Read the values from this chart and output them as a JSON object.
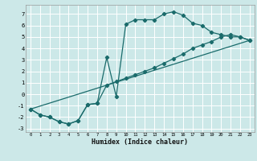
{
  "xlabel": "Humidex (Indice chaleur)",
  "bg_color": "#cce8e8",
  "grid_color": "#ffffff",
  "line_color": "#1a6b6b",
  "xlim": [
    -0.5,
    23.5
  ],
  "ylim": [
    -3.3,
    7.8
  ],
  "xticks": [
    0,
    1,
    2,
    3,
    4,
    5,
    6,
    7,
    8,
    9,
    10,
    11,
    12,
    13,
    14,
    15,
    16,
    17,
    18,
    19,
    20,
    21,
    22,
    23
  ],
  "yticks": [
    -3,
    -2,
    -1,
    0,
    1,
    2,
    3,
    4,
    5,
    6,
    7
  ],
  "line1_x": [
    0,
    1,
    2,
    3,
    4,
    5,
    6,
    7,
    8,
    9,
    10,
    11,
    12,
    13,
    14,
    15,
    16,
    17,
    18,
    19,
    20,
    21,
    22,
    23
  ],
  "line1_y": [
    -1.3,
    -1.8,
    -2.0,
    -2.4,
    -2.6,
    -2.3,
    -0.9,
    -0.8,
    3.2,
    -0.2,
    6.1,
    6.5,
    6.5,
    6.5,
    7.0,
    7.2,
    6.9,
    6.2,
    6.0,
    5.4,
    5.2,
    5.0,
    5.0,
    4.7
  ],
  "line2_x": [
    0,
    23
  ],
  "line2_y": [
    -1.3,
    4.7
  ],
  "line3_x": [
    0,
    1,
    2,
    3,
    4,
    5,
    6,
    7,
    8,
    9,
    10,
    11,
    12,
    13,
    14,
    15,
    16,
    17,
    18,
    19,
    20,
    21,
    22,
    23
  ],
  "line3_y": [
    -1.3,
    -1.8,
    -2.0,
    -2.4,
    -2.6,
    -2.3,
    -0.9,
    -0.8,
    0.8,
    1.1,
    1.4,
    1.7,
    2.0,
    2.3,
    2.7,
    3.1,
    3.5,
    4.0,
    4.3,
    4.6,
    5.0,
    5.2,
    5.0,
    4.7
  ]
}
